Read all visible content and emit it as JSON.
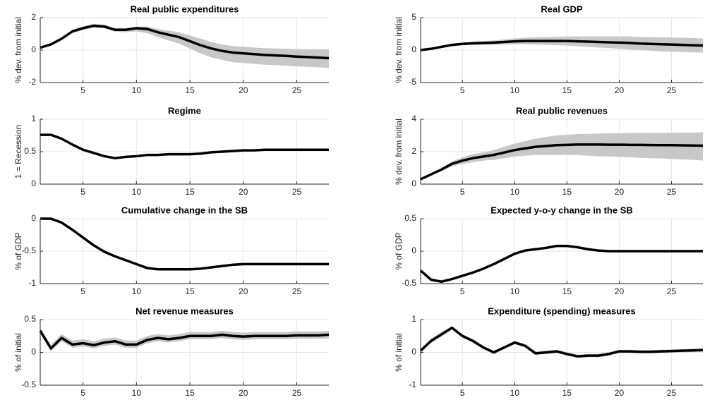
{
  "chart_data": [
    {
      "type": "line",
      "title": "Real public expenditures",
      "ylabel": "% dev. from initial",
      "x": [
        1,
        2,
        3,
        4,
        5,
        6,
        7,
        8,
        9,
        10,
        11,
        12,
        13,
        14,
        15,
        16,
        17,
        18,
        19,
        20,
        21,
        22,
        23,
        24,
        25,
        26,
        27,
        28
      ],
      "values": [
        0.15,
        0.35,
        0.7,
        1.15,
        1.35,
        1.5,
        1.45,
        1.25,
        1.25,
        1.35,
        1.3,
        1.1,
        0.95,
        0.8,
        0.55,
        0.3,
        0.1,
        -0.05,
        -0.15,
        -0.2,
        -0.25,
        -0.3,
        -0.33,
        -0.36,
        -0.4,
        -0.43,
        -0.46,
        -0.5
      ],
      "lower": [
        0.15,
        0.3,
        0.62,
        1.05,
        1.23,
        1.38,
        1.33,
        1.13,
        1.1,
        1.15,
        1.05,
        0.8,
        0.6,
        0.4,
        0.1,
        -0.2,
        -0.45,
        -0.6,
        -0.75,
        -0.8,
        -0.85,
        -0.9,
        -0.93,
        -0.96,
        -1.0,
        -1.03,
        -1.06,
        -1.1
      ],
      "upper": [
        0.15,
        0.4,
        0.78,
        1.25,
        1.47,
        1.62,
        1.57,
        1.37,
        1.35,
        1.45,
        1.45,
        1.3,
        1.2,
        1.1,
        0.9,
        0.7,
        0.5,
        0.35,
        0.25,
        0.2,
        0.15,
        0.12,
        0.1,
        0.08,
        0.06,
        0.05,
        0.05,
        0.05
      ],
      "color": "#000000",
      "band_color": "#c8c8c8",
      "xlim": [
        1,
        28
      ],
      "xticks": [
        5,
        10,
        15,
        20,
        25
      ],
      "ylim": [
        -2,
        2
      ],
      "yticks": [
        -2,
        0,
        2
      ],
      "grid": true
    },
    {
      "type": "line",
      "title": "Real GDP",
      "ylabel": "% dev. from initial",
      "x": [
        1,
        2,
        3,
        4,
        5,
        6,
        7,
        8,
        9,
        10,
        11,
        12,
        13,
        14,
        15,
        16,
        17,
        18,
        19,
        20,
        21,
        22,
        23,
        24,
        25,
        26,
        27,
        28
      ],
      "values": [
        0,
        0.2,
        0.5,
        0.8,
        0.95,
        1.05,
        1.1,
        1.15,
        1.25,
        1.35,
        1.4,
        1.4,
        1.4,
        1.4,
        1.4,
        1.35,
        1.3,
        1.25,
        1.2,
        1.15,
        1.1,
        1.0,
        0.95,
        0.9,
        0.85,
        0.8,
        0.75,
        0.7
      ],
      "lower": [
        0,
        0.15,
        0.4,
        0.65,
        0.75,
        0.8,
        0.8,
        0.8,
        0.85,
        0.9,
        0.9,
        0.85,
        0.8,
        0.75,
        0.7,
        0.6,
        0.5,
        0.4,
        0.3,
        0.2,
        0.1,
        0,
        -0.1,
        -0.2,
        -0.25,
        -0.3,
        -0.35,
        -0.4
      ],
      "upper": [
        0,
        0.25,
        0.6,
        0.95,
        1.15,
        1.3,
        1.4,
        1.5,
        1.65,
        1.8,
        1.9,
        1.95,
        2.0,
        2.05,
        2.1,
        2.1,
        2.1,
        2.1,
        2.1,
        2.1,
        2.1,
        2.0,
        2.0,
        1.95,
        1.95,
        1.9,
        1.85,
        1.8
      ],
      "color": "#000000",
      "band_color": "#c8c8c8",
      "xlim": [
        1,
        28
      ],
      "xticks": [
        5,
        10,
        15,
        20,
        25
      ],
      "ylim": [
        -5,
        5
      ],
      "yticks": [
        -5,
        0,
        5
      ],
      "grid": true
    },
    {
      "type": "line",
      "title": "Regime",
      "ylabel": "1 = Recession",
      "x": [
        1,
        2,
        3,
        4,
        5,
        6,
        7,
        8,
        9,
        10,
        11,
        12,
        13,
        14,
        15,
        16,
        17,
        18,
        19,
        20,
        21,
        22,
        23,
        24,
        25,
        26,
        27,
        28
      ],
      "values": [
        0.76,
        0.76,
        0.7,
        0.61,
        0.53,
        0.48,
        0.43,
        0.4,
        0.42,
        0.43,
        0.45,
        0.45,
        0.46,
        0.46,
        0.46,
        0.47,
        0.49,
        0.5,
        0.51,
        0.52,
        0.52,
        0.53,
        0.53,
        0.53,
        0.53,
        0.53,
        0.53,
        0.53
      ],
      "color": "#000000",
      "xlim": [
        1,
        28
      ],
      "xticks": [
        5,
        10,
        15,
        20,
        25
      ],
      "ylim": [
        0,
        1
      ],
      "yticks": [
        0,
        0.5,
        1
      ],
      "grid": true
    },
    {
      "type": "line",
      "title": "Real public revenues",
      "ylabel": "% dev. from initial",
      "x": [
        1,
        2,
        3,
        4,
        5,
        6,
        7,
        8,
        9,
        10,
        11,
        12,
        13,
        14,
        15,
        16,
        17,
        18,
        19,
        20,
        21,
        22,
        23,
        24,
        25,
        26,
        27,
        28
      ],
      "values": [
        0.3,
        0.6,
        0.9,
        1.25,
        1.45,
        1.6,
        1.7,
        1.8,
        1.95,
        2.1,
        2.2,
        2.3,
        2.35,
        2.4,
        2.42,
        2.44,
        2.44,
        2.44,
        2.43,
        2.43,
        2.42,
        2.42,
        2.41,
        2.4,
        2.4,
        2.39,
        2.38,
        2.37
      ],
      "lower": [
        0.3,
        0.55,
        0.8,
        1.1,
        1.25,
        1.35,
        1.45,
        1.5,
        1.6,
        1.7,
        1.75,
        1.8,
        1.8,
        1.8,
        1.8,
        1.8,
        1.75,
        1.72,
        1.7,
        1.68,
        1.65,
        1.62,
        1.6,
        1.58,
        1.55,
        1.52,
        1.5,
        1.45
      ],
      "upper": [
        0.3,
        0.65,
        1.0,
        1.4,
        1.65,
        1.85,
        1.95,
        2.1,
        2.3,
        2.5,
        2.65,
        2.8,
        2.9,
        3.0,
        3.05,
        3.08,
        3.1,
        3.12,
        3.13,
        3.14,
        3.15,
        3.15,
        3.15,
        3.16,
        3.17,
        3.17,
        3.18,
        3.2
      ],
      "color": "#000000",
      "band_color": "#c8c8c8",
      "xlim": [
        1,
        28
      ],
      "xticks": [
        5,
        10,
        15,
        20,
        25
      ],
      "ylim": [
        0,
        4
      ],
      "yticks": [
        0,
        2,
        4
      ],
      "grid": true
    },
    {
      "type": "line",
      "title": "Cumulative change in the SB",
      "ylabel": "% of GDP",
      "x": [
        1,
        2,
        3,
        4,
        5,
        6,
        7,
        8,
        9,
        10,
        11,
        12,
        13,
        14,
        15,
        16,
        17,
        18,
        19,
        20,
        21,
        22,
        23,
        24,
        25,
        26,
        27,
        28
      ],
      "values": [
        0,
        0,
        -0.06,
        -0.17,
        -0.29,
        -0.41,
        -0.51,
        -0.58,
        -0.64,
        -0.7,
        -0.76,
        -0.78,
        -0.78,
        -0.78,
        -0.78,
        -0.77,
        -0.75,
        -0.73,
        -0.71,
        -0.7,
        -0.7,
        -0.7,
        -0.7,
        -0.7,
        -0.7,
        -0.7,
        -0.7,
        -0.7
      ],
      "color": "#000000",
      "xlim": [
        1,
        28
      ],
      "xticks": [
        5,
        10,
        15,
        20,
        25
      ],
      "ylim": [
        -1,
        0
      ],
      "yticks": [
        -1,
        -0.5,
        0
      ],
      "grid": true
    },
    {
      "type": "line",
      "title": "Expected y-o-y change in the SB",
      "ylabel": "% of GDP",
      "x": [
        1,
        2,
        3,
        4,
        5,
        6,
        7,
        8,
        9,
        10,
        11,
        12,
        13,
        14,
        15,
        16,
        17,
        18,
        19,
        20,
        21,
        22,
        23,
        24,
        25,
        26,
        27,
        28
      ],
      "values": [
        -0.3,
        -0.44,
        -0.47,
        -0.43,
        -0.38,
        -0.33,
        -0.27,
        -0.2,
        -0.12,
        -0.04,
        0.01,
        0.03,
        0.05,
        0.08,
        0.08,
        0.06,
        0.03,
        0.01,
        0,
        0,
        0,
        0,
        0,
        0,
        0,
        0,
        0,
        0
      ],
      "color": "#000000",
      "xlim": [
        1,
        28
      ],
      "xticks": [
        5,
        10,
        15,
        20,
        25
      ],
      "ylim": [
        -0.5,
        0.5
      ],
      "yticks": [
        -0.5,
        0,
        0.5
      ],
      "grid": true
    },
    {
      "type": "line",
      "title": "Net revenue measures",
      "ylabel": "% of initial",
      "x": [
        1,
        2,
        3,
        4,
        5,
        6,
        7,
        8,
        9,
        10,
        11,
        12,
        13,
        14,
        15,
        16,
        17,
        18,
        19,
        20,
        21,
        22,
        23,
        24,
        25,
        26,
        27,
        28
      ],
      "values": [
        0.33,
        0.06,
        0.22,
        0.12,
        0.14,
        0.11,
        0.15,
        0.17,
        0.12,
        0.12,
        0.19,
        0.22,
        0.2,
        0.22,
        0.25,
        0.25,
        0.25,
        0.27,
        0.25,
        0.24,
        0.25,
        0.25,
        0.25,
        0.25,
        0.26,
        0.26,
        0.26,
        0.27
      ],
      "lower": [
        0.29,
        0.02,
        0.17,
        0.07,
        0.09,
        0.06,
        0.1,
        0.12,
        0.07,
        0.07,
        0.14,
        0.17,
        0.15,
        0.17,
        0.2,
        0.2,
        0.2,
        0.22,
        0.2,
        0.19,
        0.2,
        0.2,
        0.2,
        0.2,
        0.21,
        0.21,
        0.21,
        0.21
      ],
      "upper": [
        0.37,
        0.11,
        0.28,
        0.18,
        0.2,
        0.17,
        0.21,
        0.23,
        0.18,
        0.18,
        0.25,
        0.28,
        0.26,
        0.28,
        0.31,
        0.31,
        0.31,
        0.33,
        0.31,
        0.3,
        0.31,
        0.31,
        0.31,
        0.31,
        0.32,
        0.32,
        0.32,
        0.33
      ],
      "color": "#000000",
      "band_color": "#c8c8c8",
      "xlim": [
        1,
        28
      ],
      "xticks": [
        5,
        10,
        15,
        20,
        25
      ],
      "ylim": [
        -0.5,
        0.5
      ],
      "yticks": [
        -0.5,
        0,
        0.5
      ],
      "grid": true
    },
    {
      "type": "line",
      "title": "Expenditure (spending) measures",
      "ylabel": "% of initial",
      "x": [
        1,
        2,
        3,
        4,
        5,
        6,
        7,
        8,
        9,
        10,
        11,
        12,
        13,
        14,
        15,
        16,
        17,
        18,
        19,
        20,
        21,
        22,
        23,
        24,
        25,
        26,
        27,
        28
      ],
      "values": [
        0.05,
        0.35,
        0.55,
        0.75,
        0.5,
        0.35,
        0.15,
        0,
        0.15,
        0.3,
        0.2,
        -0.03,
        0,
        0.03,
        -0.05,
        -0.12,
        -0.1,
        -0.1,
        -0.05,
        0.03,
        0.03,
        0.02,
        0.02,
        0.03,
        0.04,
        0.05,
        0.06,
        0.07
      ],
      "lower": [
        0,
        0.28,
        0.48,
        0.7,
        0.45,
        0.3,
        0.1,
        -0.05,
        0.1,
        0.25,
        0.15,
        -0.08,
        -0.05,
        -0.02,
        -0.1,
        -0.17,
        -0.15,
        -0.15,
        -0.1,
        -0.02,
        -0.02,
        -0.03,
        -0.03,
        -0.02,
        -0.01,
        0,
        0.01,
        0.02
      ],
      "upper": [
        0.1,
        0.42,
        0.62,
        0.8,
        0.55,
        0.4,
        0.2,
        0.05,
        0.2,
        0.35,
        0.25,
        0.02,
        0.05,
        0.08,
        0,
        -0.07,
        -0.05,
        -0.05,
        0,
        0.08,
        0.08,
        0.07,
        0.07,
        0.08,
        0.09,
        0.1,
        0.11,
        0.12
      ],
      "color": "#000000",
      "band_color": "#c8c8c8",
      "xlim": [
        1,
        28
      ],
      "xticks": [
        5,
        10,
        15,
        20,
        25
      ],
      "ylim": [
        -1,
        1
      ],
      "yticks": [
        -1,
        0,
        1
      ],
      "grid": true
    }
  ]
}
